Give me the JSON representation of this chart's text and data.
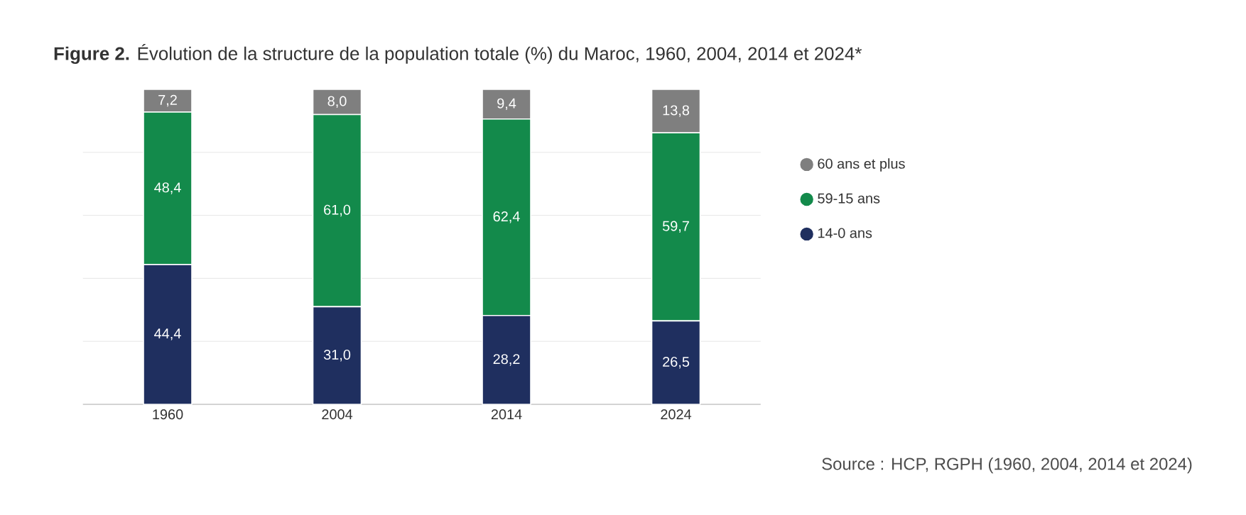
{
  "chart_data": {
    "type": "bar",
    "stacked": true,
    "title": "**Figure 2.** Évolution de la structure de la population totale (%) du Maroc, 1960, 2004, 2014 et 2024*",
    "categories": [
      "1960",
      "2004",
      "2014",
      "2024"
    ],
    "series": [
      {
        "name": "14-0 ans",
        "color": "#1f2f5f",
        "values": [
          44.4,
          31.0,
          28.2,
          26.5
        ],
        "value_labels": [
          "44,4",
          "31,0",
          "28,2",
          "26,5"
        ]
      },
      {
        "name": "59-15 ans",
        "color": "#138a4b",
        "values": [
          48.4,
          61.0,
          62.4,
          59.7
        ],
        "value_labels": [
          "48,4",
          "61,0",
          "62,4",
          "59,7"
        ]
      },
      {
        "name": "60 ans et plus",
        "color": "#7f7f7f",
        "values": [
          7.2,
          8.0,
          9.4,
          13.8
        ],
        "value_labels": [
          "7,2",
          "8,0",
          "9,4",
          "13,8"
        ]
      }
    ],
    "ylim": [
      0,
      100
    ],
    "yticks": [
      {
        "value": 0,
        "label": null
      },
      {
        "value": 20,
        "label": null
      },
      {
        "value": 40,
        "label": null
      },
      {
        "value": 60,
        "label": null
      },
      {
        "value": 80,
        "label": null
      }
    ],
    "grid": "y",
    "tick_labels": "x",
    "legend": "right",
    "annotations": [
      "Source : HCP, RGPH (1960, 2004, 2014 et 2024)"
    ]
  }
}
